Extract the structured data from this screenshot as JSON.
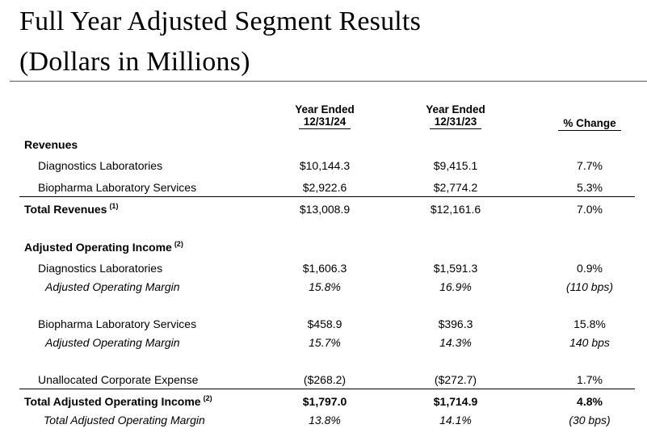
{
  "title_line1": "Full Year Adjusted Segment Results",
  "title_line2": "(Dollars in Millions)",
  "columns": {
    "col1_line1": "Year Ended",
    "col1_line2": "12/31/24",
    "col2_line1": "Year Ended",
    "col2_line2": "12/31/23",
    "col3": "% Change"
  },
  "sections": {
    "revenues": "Revenues",
    "adj_op_income": "Adjusted Operating Income",
    "adj_op_income_note": "(2)"
  },
  "rows": {
    "diag_rev": {
      "label": "Diagnostics Laboratories",
      "v24": "$10,144.3",
      "v23": "$9,415.1",
      "chg": "7.7%"
    },
    "bio_rev": {
      "label": "Biopharma Laboratory Services",
      "v24": "$2,922.6",
      "v23": "$2,774.2",
      "chg": "5.3%"
    },
    "total_rev": {
      "label": "Total Revenues",
      "note": "(1)",
      "v24": "$13,008.9",
      "v23": "$12,161.6",
      "chg": "7.0%"
    },
    "diag_aoi": {
      "label": "Diagnostics Laboratories",
      "v24": "$1,606.3",
      "v23": "$1,591.3",
      "chg": "0.9%"
    },
    "diag_margin": {
      "label": "Adjusted Operating Margin",
      "v24": "15.8%",
      "v23": "16.9%",
      "chg": "(110 bps)"
    },
    "bio_aoi": {
      "label": "Biopharma Laboratory Services",
      "v24": "$458.9",
      "v23": "$396.3",
      "chg": "15.8%"
    },
    "bio_margin": {
      "label": "Adjusted Operating Margin",
      "v24": "15.7%",
      "v23": "14.3%",
      "chg": "140 bps"
    },
    "corp": {
      "label": "Unallocated Corporate Expense",
      "v24": "($268.2)",
      "v23": "($272.7)",
      "chg": "1.7%"
    },
    "total_aoi": {
      "label": "Total Adjusted Operating Income",
      "note": "(2)",
      "v24": "$1,797.0",
      "v23": "$1,714.9",
      "chg": "4.8%"
    },
    "total_margin": {
      "label": "Total Adjusted Operating Margin",
      "v24": "13.8%",
      "v23": "14.1%",
      "chg": "(30 bps)"
    }
  }
}
